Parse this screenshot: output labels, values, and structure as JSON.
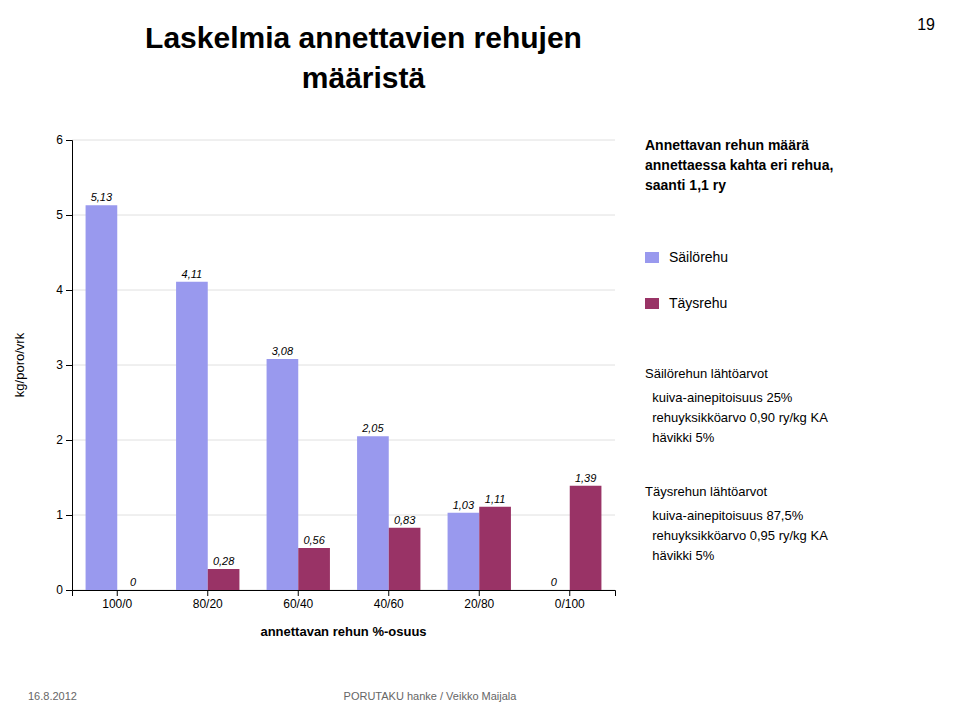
{
  "chart_data": {
    "type": "bar",
    "title": "Laskelmia annettavien rehujen\nmääristä",
    "xlabel": "annettavan rehun %-osuus",
    "ylabel": "kg/poro/vrk",
    "categories": [
      "100/0",
      "80/20",
      "60/40",
      "40/60",
      "20/80",
      "0/100"
    ],
    "series": [
      {
        "name": "Säilörehu",
        "color": "#9999EE",
        "values": [
          5.13,
          4.11,
          3.08,
          2.05,
          1.03,
          0
        ],
        "value_labels": [
          "5,13",
          "4,11",
          "3,08",
          "2,05",
          "1,03",
          "0"
        ]
      },
      {
        "name": "Täysrehu",
        "color": "#993366",
        "values": [
          0,
          0.28,
          0.56,
          0.83,
          1.11,
          1.39
        ],
        "value_labels": [
          "0",
          "0,28",
          "0,56",
          "0,83",
          "1,11",
          "1,39"
        ]
      }
    ],
    "ylim": [
      0,
      6
    ],
    "yticks": [
      0,
      1,
      2,
      3,
      4,
      5,
      6
    ],
    "grid": true,
    "data_labels": true,
    "legend": "right",
    "annotations": [
      "19",
      "Annettavan rehun määrä\nannettaessa kahta eri rehua,\nsaanti 1,1 ry",
      "Säilörehun lähtöarvot",
      "  kuiva-ainepitoisuus 25%\n  rehuyksikköarvo 0,90 ry/kg KA\n  hävikki 5%",
      "Täysrehun lähtöarvot",
      "  kuiva-ainepitoisuus 87,5%\n  rehuyksikköarvo 0,95 ry/kg KA\n  hävikki 5%",
      "16.8.2012",
      "PORUTAKU hanke / Veikko Maijala"
    ]
  }
}
